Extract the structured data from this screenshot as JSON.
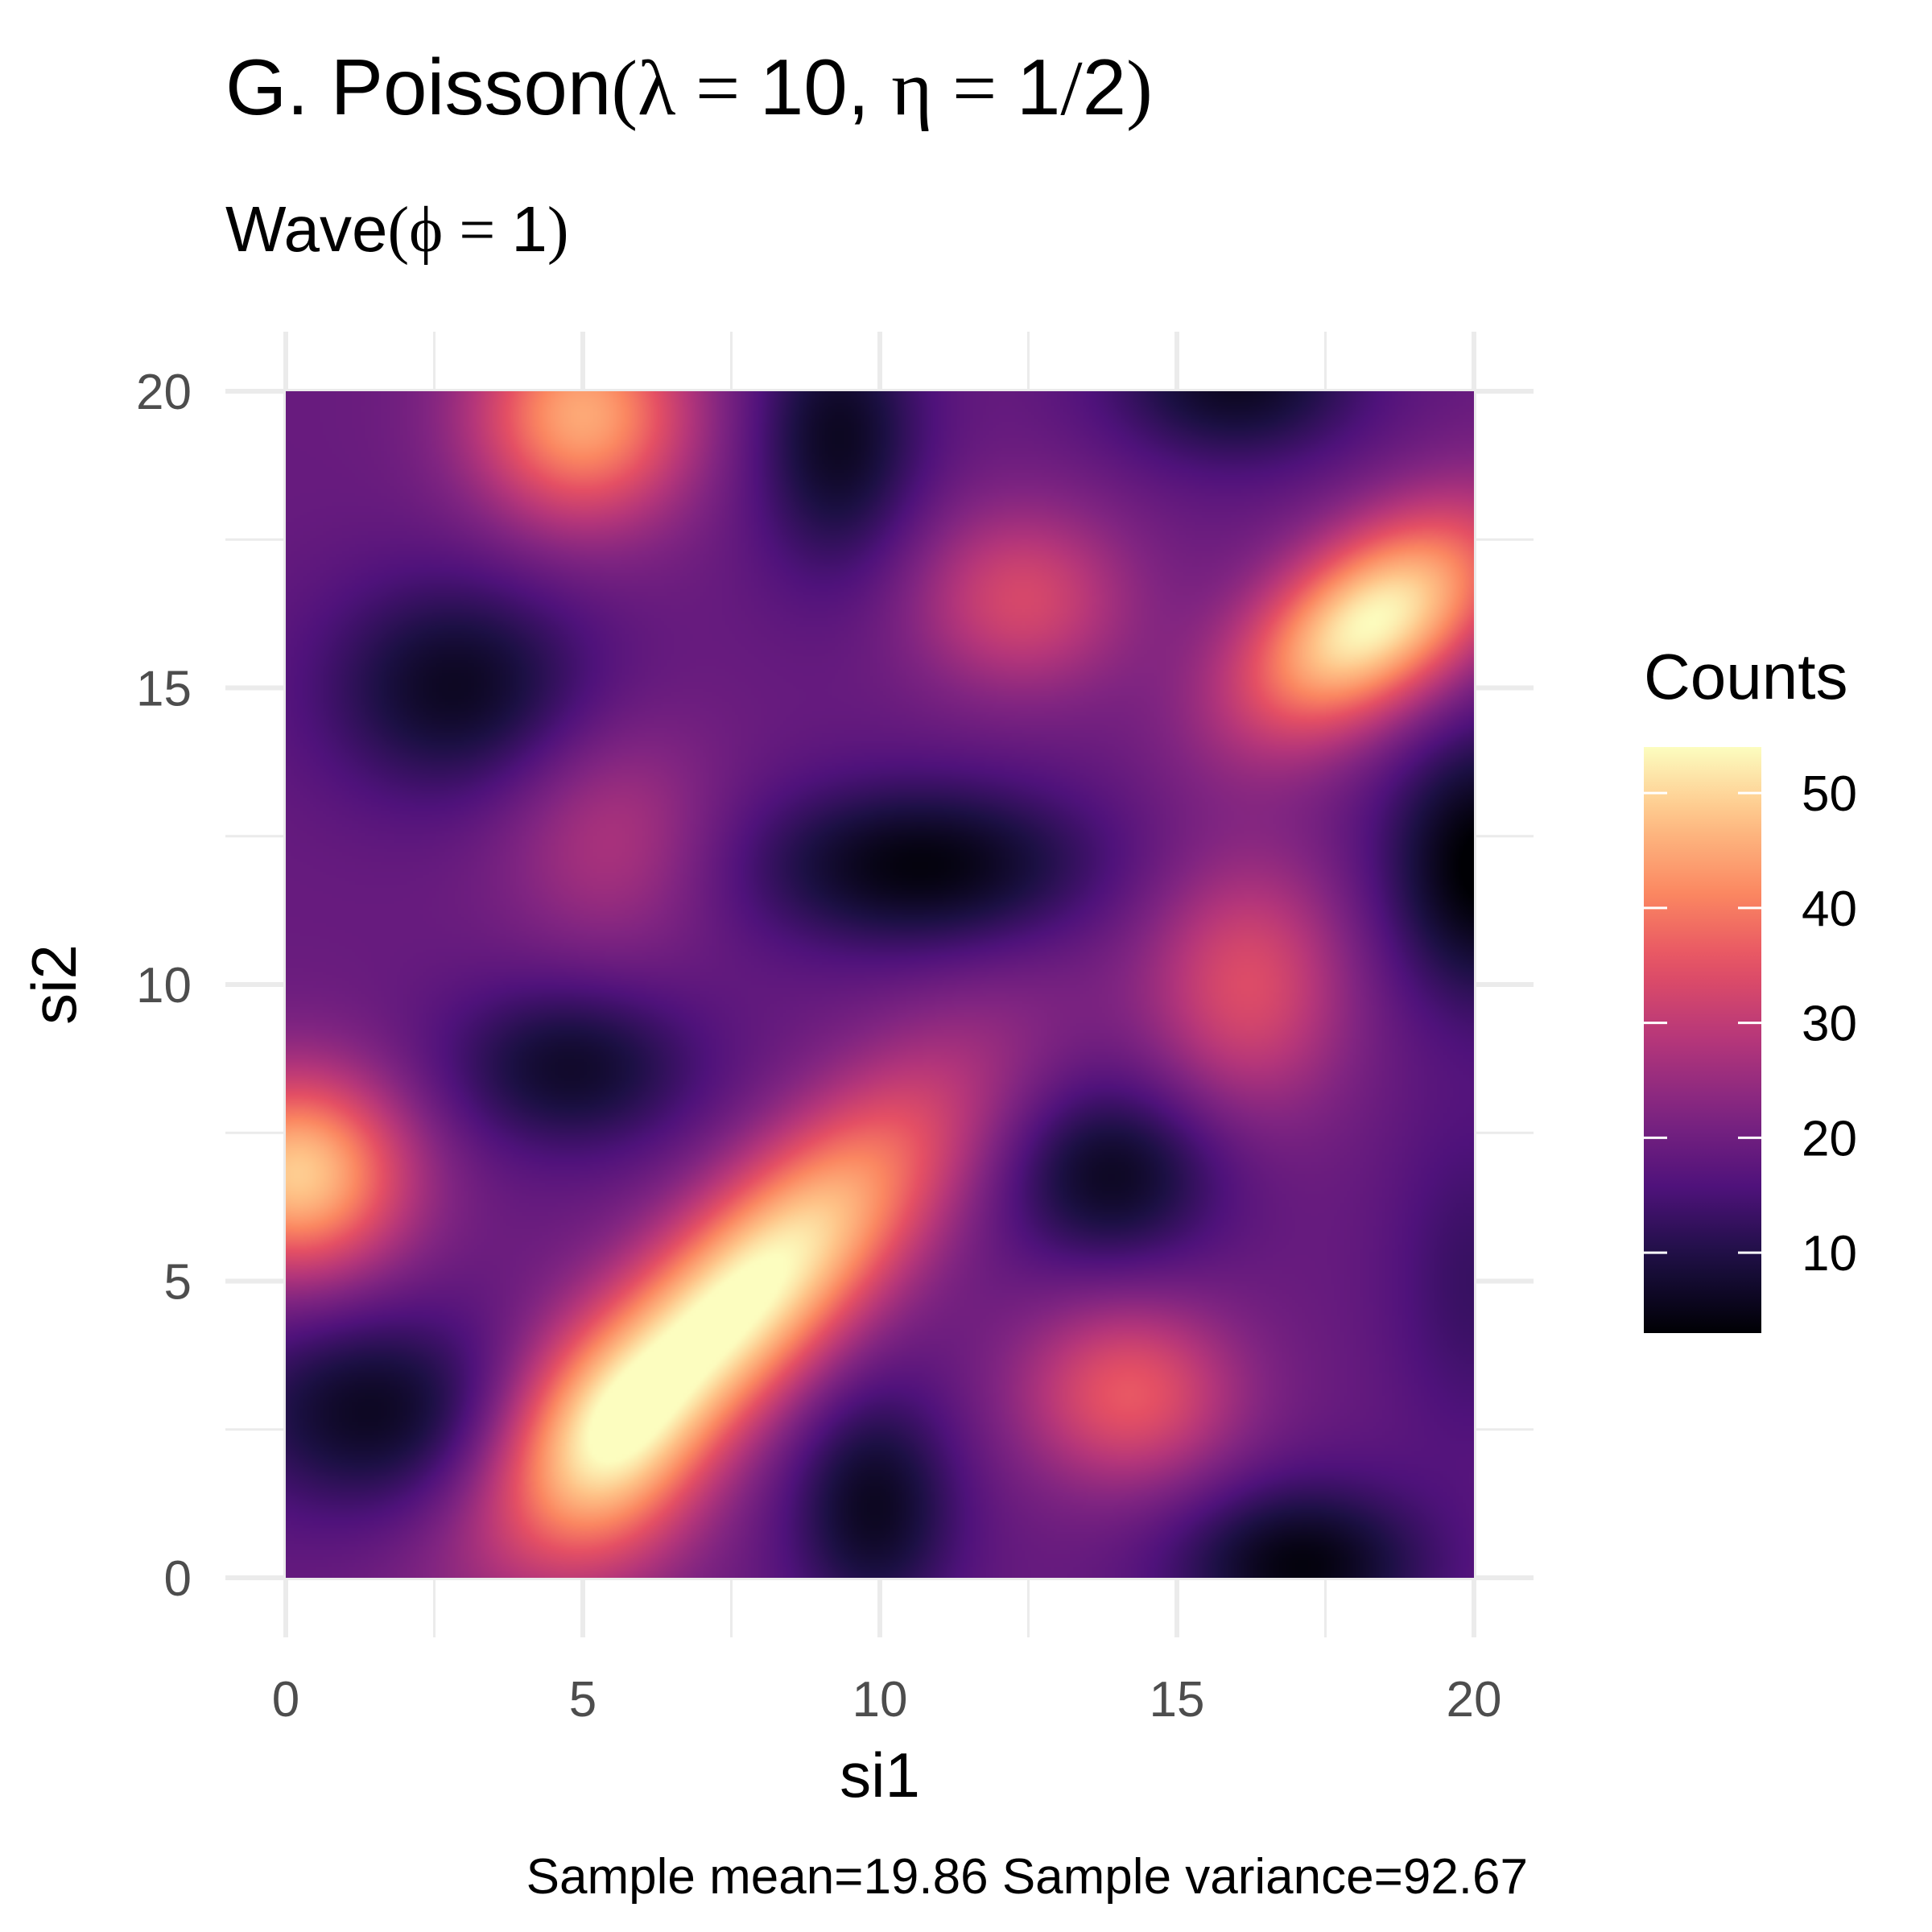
{
  "chart_data": {
    "type": "heatmap",
    "title": {
      "prefix": "G. Poisson",
      "open": "(",
      "lambda_sym": "λ",
      "eq": " = ",
      "lambda_val": "10",
      "sep": ", ",
      "eta_sym": "η",
      "eta_val": "1",
      "slash": "/",
      "eta_den": "2",
      "close": ")"
    },
    "subtitle": {
      "prefix": "Wave",
      "open": "(",
      "phi_sym": "ϕ",
      "eq": " = ",
      "phi_val": "1",
      "close": ")"
    },
    "xlabel": "si1",
    "ylabel": "si2",
    "xlim": [
      0,
      20
    ],
    "ylim": [
      0,
      20
    ],
    "xticks": [
      0,
      5,
      10,
      15,
      20
    ],
    "yticks": [
      0,
      5,
      10,
      15,
      20
    ],
    "x_tick_labels": [
      "0",
      "5",
      "10",
      "15",
      "20"
    ],
    "y_tick_labels": [
      "0",
      "5",
      "10",
      "15",
      "20"
    ],
    "grid": true,
    "colormap": "magma",
    "legend": {
      "title": "Counts",
      "placement": "right",
      "range": [
        3,
        54
      ],
      "breaks": [
        10,
        20,
        30,
        40,
        50
      ],
      "labels": [
        "10",
        "20",
        "30",
        "40",
        "50"
      ]
    },
    "field": {
      "base": 19,
      "features": [
        {
          "x": 5.0,
          "y": 19.6,
          "amp": 26,
          "sx": 1.3,
          "sy": 1.3
        },
        {
          "x": 18.3,
          "y": 16.1,
          "amp": 35,
          "sx": 1.8,
          "sy": 1.0,
          "rot": 35
        },
        {
          "x": 12.4,
          "y": 16.5,
          "amp": 14,
          "sx": 1.3,
          "sy": 1.1
        },
        {
          "x": 5.5,
          "y": 12.5,
          "amp": 9,
          "sx": 1.3,
          "sy": 1.4
        },
        {
          "x": 16.2,
          "y": 10.0,
          "amp": 15,
          "sx": 1.2,
          "sy": 1.5
        },
        {
          "x": 0.2,
          "y": 6.8,
          "amp": 30,
          "sx": 1.3,
          "sy": 1.2
        },
        {
          "x": 7.6,
          "y": 4.6,
          "amp": 37,
          "sx": 3.3,
          "sy": 1.1,
          "rot": 45
        },
        {
          "x": 5.3,
          "y": 2.0,
          "amp": 15,
          "sx": 1.2,
          "sy": 1.5
        },
        {
          "x": 14.2,
          "y": 3.1,
          "amp": 17,
          "sx": 1.3,
          "sy": 1.1
        },
        {
          "x": 2.9,
          "y": 15.0,
          "amp": -13,
          "sx": 1.6,
          "sy": 1.3
        },
        {
          "x": 9.3,
          "y": 19.2,
          "amp": -13,
          "sx": 1.0,
          "sy": 1.6
        },
        {
          "x": 16.0,
          "y": 20.2,
          "amp": -13,
          "sx": 1.5,
          "sy": 1.0
        },
        {
          "x": 10.7,
          "y": 12.0,
          "amp": -15,
          "sx": 2.1,
          "sy": 1.0
        },
        {
          "x": 20.2,
          "y": 12.0,
          "amp": -17,
          "sx": 1.2,
          "sy": 1.6
        },
        {
          "x": 4.8,
          "y": 8.6,
          "amp": -12,
          "sx": 1.5,
          "sy": 1.0
        },
        {
          "x": 13.9,
          "y": 6.8,
          "amp": -13,
          "sx": 1.3,
          "sy": 1.1
        },
        {
          "x": 1.5,
          "y": 2.8,
          "amp": -13,
          "sx": 1.7,
          "sy": 1.2
        },
        {
          "x": 9.9,
          "y": 1.2,
          "amp": -13,
          "sx": 1.0,
          "sy": 1.4
        },
        {
          "x": 17.1,
          "y": 0.2,
          "amp": -15,
          "sx": 1.5,
          "sy": 1.0
        },
        {
          "x": 20.0,
          "y": 5.0,
          "amp": -6,
          "sx": 1.0,
          "sy": 2.0
        }
      ]
    },
    "caption": {
      "mean_label": "Sample mean",
      "mean_value": "19.86",
      "var_label": "Sample variance",
      "var_value": "92.67"
    }
  }
}
